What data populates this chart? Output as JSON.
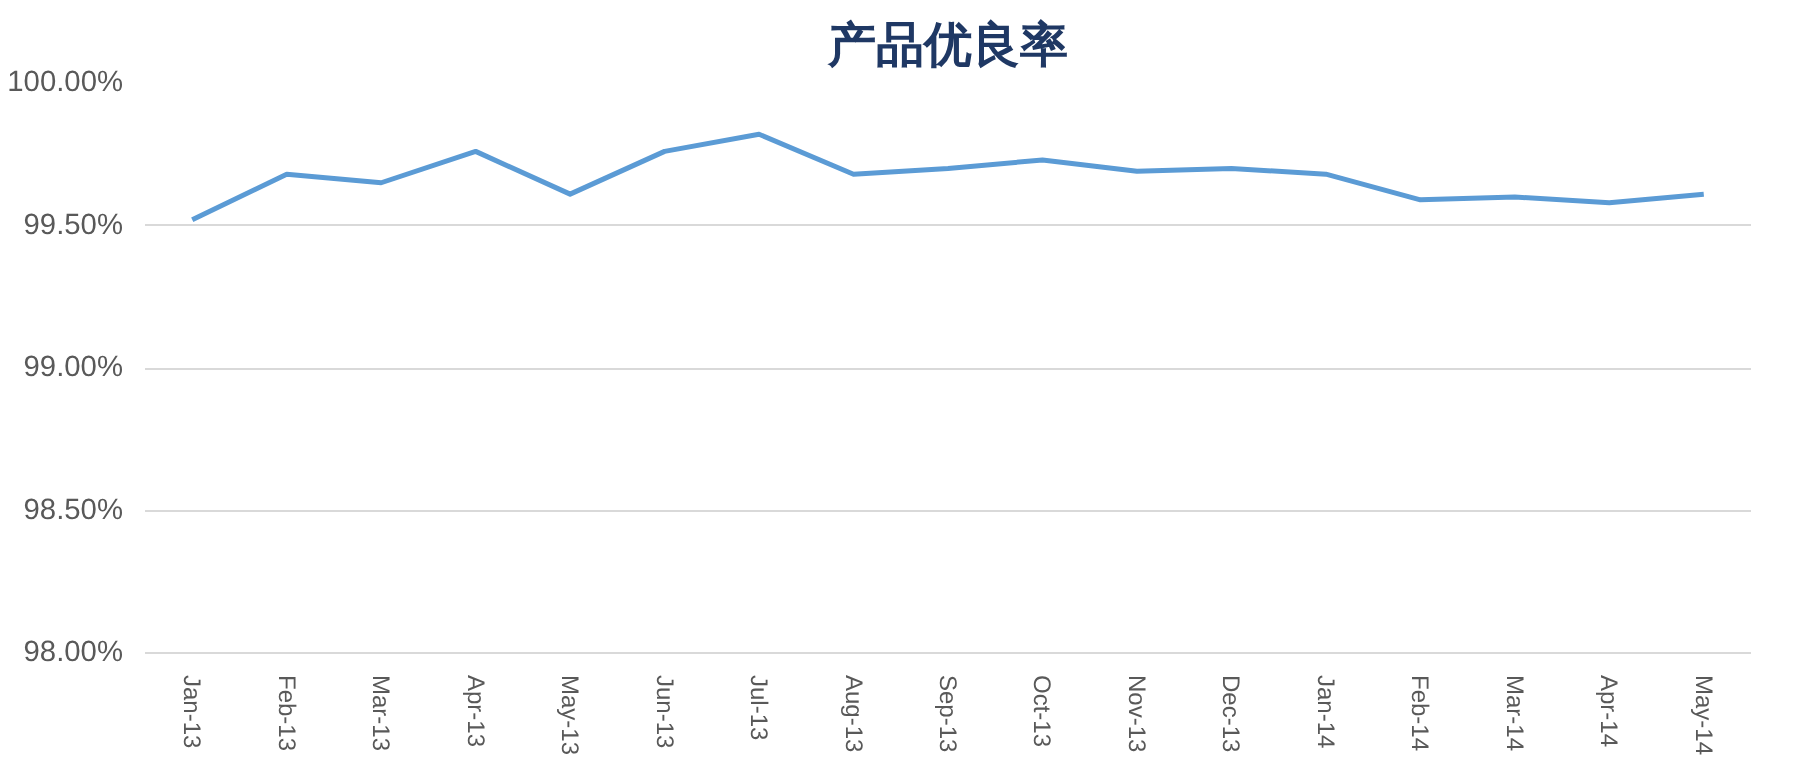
{
  "chart_data": {
    "type": "line",
    "title": "产品优良率",
    "categories": [
      "Jan-13",
      "Feb-13",
      "Mar-13",
      "Apr-13",
      "May-13",
      "Jun-13",
      "Jul-13",
      "Aug-13",
      "Sep-13",
      "Oct-13",
      "Nov-13",
      "Dec-13",
      "Jan-14",
      "Feb-14",
      "Mar-14",
      "Apr-14",
      "May-14"
    ],
    "series": [
      {
        "color": "#5b9bd5",
        "values": [
          99.52,
          99.68,
          99.65,
          99.76,
          99.61,
          99.76,
          99.82,
          99.68,
          99.7,
          99.73,
          99.69,
          99.7,
          99.68,
          99.59,
          99.6,
          99.58,
          99.61
        ]
      }
    ],
    "ylim": [
      98.0,
      100.0
    ],
    "yticks": [
      {
        "value": 98.0,
        "label": "98.00%"
      },
      {
        "value": 98.5,
        "label": "98.50%"
      },
      {
        "value": 99.0,
        "label": "99.00%"
      },
      {
        "value": 99.5,
        "label": "99.50%"
      },
      {
        "value": 100.0,
        "label": "100.00%"
      }
    ],
    "grid": "y",
    "marker": "none",
    "line_style": "solid"
  }
}
